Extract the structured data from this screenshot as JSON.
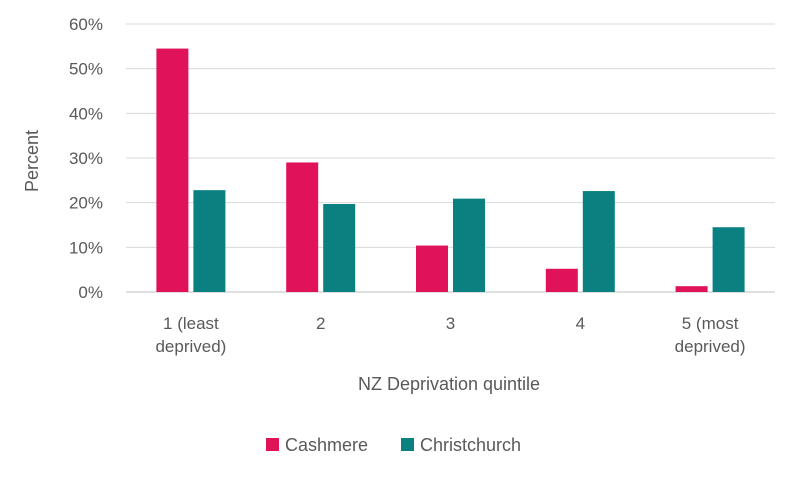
{
  "chart_data": {
    "type": "bar",
    "categories": [
      "1 (least deprived)",
      "2",
      "3",
      "4",
      "5 (most deprived)"
    ],
    "category_lines": [
      [
        "1 (least",
        "deprived)"
      ],
      [
        "2"
      ],
      [
        "3"
      ],
      [
        "4"
      ],
      [
        "5 (most",
        "deprived)"
      ]
    ],
    "series": [
      {
        "name": "Cashmere",
        "values": [
          54.5,
          29.0,
          10.4,
          5.2,
          1.3
        ],
        "color": "#e0125a"
      },
      {
        "name": "Christchurch",
        "values": [
          22.8,
          19.7,
          20.9,
          22.6,
          14.5
        ],
        "color": "#0a8080"
      }
    ],
    "xlabel": "NZ Deprivation quintile",
    "ylabel": "Percent",
    "ylim": [
      0,
      60
    ],
    "yticks": [
      "0%",
      "10%",
      "20%",
      "30%",
      "40%",
      "50%",
      "60%"
    ],
    "grid": true,
    "legend_position": "bottom"
  }
}
